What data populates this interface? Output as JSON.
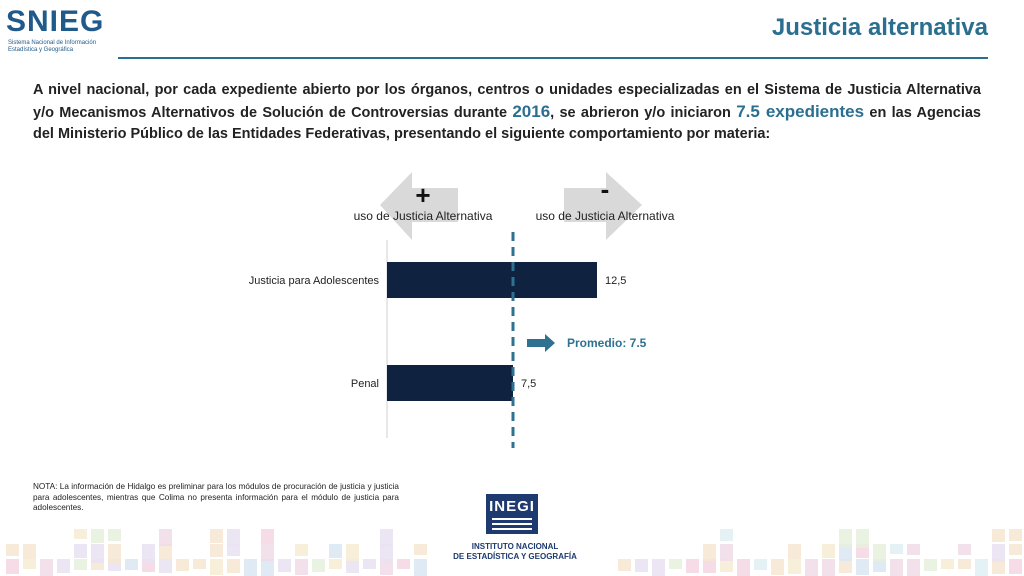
{
  "logo": {
    "short": "SNIEG",
    "subtitle": "Sistema Nacional de Información Estadística y Geográfica"
  },
  "header": {
    "title": "Justicia alternativa"
  },
  "intro": {
    "part1": "A nivel nacional, por cada expediente abierto por los órganos, centros o unidades especializadas en el Sistema de Justicia Alternativa y/o Mecanismos Alternativos de Solución de Controversias durante ",
    "year": "2016",
    "part2": ", se abrieron y/o iniciaron ",
    "amount": "7.5 expedientes",
    "part3": " en las Agencias del Ministerio Público de las Entidades Federativas, presentando el siguiente comportamiento por materia:"
  },
  "chart_data": {
    "type": "bar",
    "orientation": "horizontal",
    "categories": [
      "Justicia para Adolescentes",
      "Penal"
    ],
    "values": [
      12.5,
      7.5
    ],
    "value_labels": [
      "12,5",
      "7,5"
    ],
    "average": 7.5,
    "average_label": "Promedio: 7.5",
    "more_label": {
      "sign": "+",
      "text": "uso de Justicia Alternativa"
    },
    "less_label": {
      "sign": "-",
      "text": "uso de Justicia Alternativa"
    },
    "bar_color": "#0f2340",
    "average_color": "#2e7190",
    "arrow_color": "#d9d9d9"
  },
  "note": "NOTA: La información de Hidalgo es preliminar para los módulos de procuración de justicia y justicia para adolescentes, mientras que Colima no presenta información para el módulo de justicia para adolescentes.",
  "inegi": {
    "mark": "INEGI",
    "line1": "INSTITUTO NACIONAL",
    "line2": "DE ESTADÍSTICA Y GEOGRAFÍA"
  }
}
